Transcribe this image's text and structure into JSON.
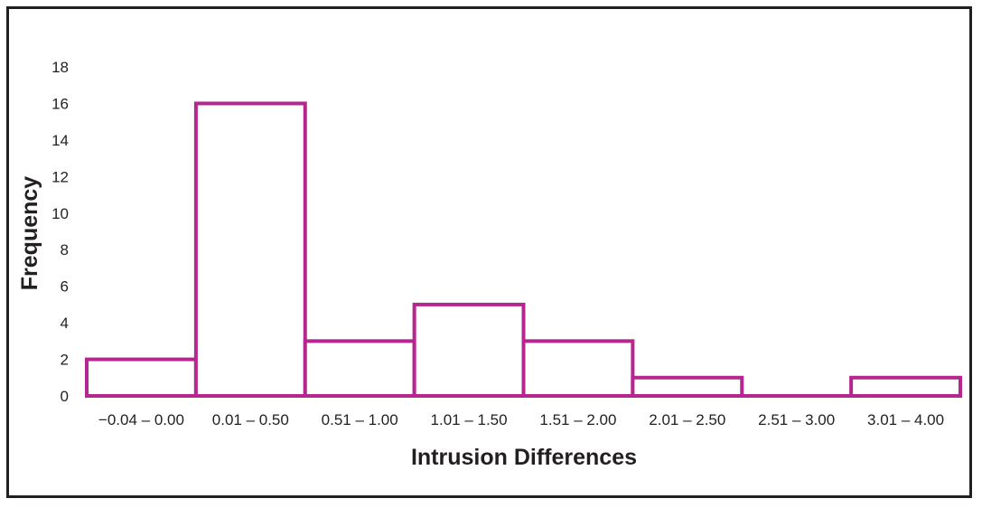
{
  "chart_data": {
    "type": "bar",
    "categories": [
      "−0.04 – 0.00",
      "0.01 – 0.50",
      "0.51 – 1.00",
      "1.01 – 1.50",
      "1.51 – 2.00",
      "2.01 – 2.50",
      "2.51 – 3.00",
      "3.01 – 4.00"
    ],
    "values": [
      2,
      16,
      3,
      5,
      3,
      1,
      0,
      1
    ],
    "title": "",
    "xlabel": "Intrusion Differences",
    "ylabel": "Frequency",
    "ylim": [
      0,
      18
    ],
    "yticks": [
      "0",
      "2",
      "4",
      "6",
      "8",
      "10",
      "12",
      "14",
      "16",
      "18"
    ],
    "grid": false,
    "legend": "none",
    "colors": {
      "bar_stroke": "#b5268f",
      "bar_fill": "#ffffff",
      "text": "#231f20"
    }
  }
}
